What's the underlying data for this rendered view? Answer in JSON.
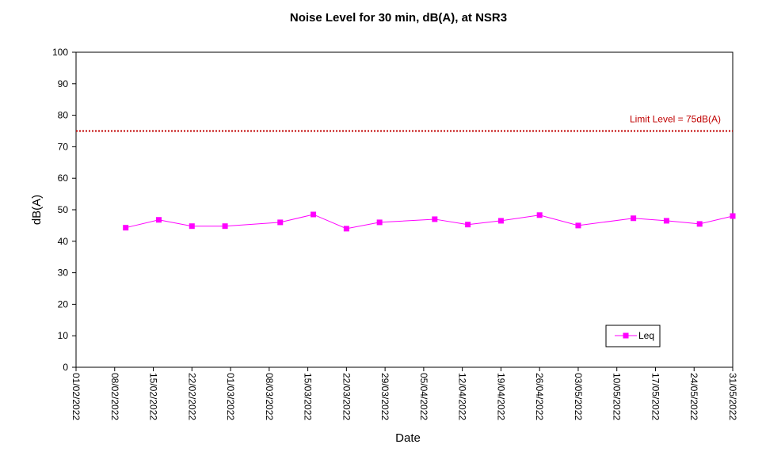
{
  "chart_data": {
    "type": "line",
    "title": "Noise Level for 30 min, dB(A), at NSR3",
    "xlabel": "Date",
    "ylabel": "dB(A)",
    "ylim": [
      0,
      100
    ],
    "yticks": [
      "0",
      "10",
      "20",
      "30",
      "40",
      "50",
      "60",
      "70",
      "80",
      "90",
      "100"
    ],
    "xlim": [
      "01/02/2022",
      "31/05/2022"
    ],
    "xticks": [
      "01/02/2022",
      "08/02/2022",
      "15/02/2022",
      "22/02/2022",
      "01/03/2022",
      "08/03/2022",
      "15/03/2022",
      "22/03/2022",
      "29/03/2022",
      "05/04/2022",
      "12/04/2022",
      "19/04/2022",
      "26/04/2022",
      "03/05/2022",
      "10/05/2022",
      "17/05/2022",
      "24/05/2022",
      "31/05/2022"
    ],
    "grid": false,
    "legend_position": "bottom-right",
    "limit_line": {
      "value": 75,
      "label": "Limit Level  = 75dB(A)",
      "color": "#c00000"
    },
    "series": [
      {
        "name": "Leq",
        "color": "#ff00ff",
        "marker": "square",
        "x": [
          "10/02/2022",
          "16/02/2022",
          "22/02/2022",
          "28/02/2022",
          "10/03/2022",
          "16/03/2022",
          "22/03/2022",
          "28/03/2022",
          "07/04/2022",
          "13/04/2022",
          "19/04/2022",
          "26/04/2022",
          "03/05/2022",
          "13/05/2022",
          "19/05/2022",
          "25/05/2022",
          "31/05/2022"
        ],
        "values": [
          44.3,
          46.8,
          44.8,
          44.8,
          46.0,
          48.5,
          44.0,
          46.0,
          47.0,
          45.3,
          46.5,
          48.3,
          45.0,
          47.3,
          46.5,
          45.5,
          48.0
        ]
      }
    ]
  }
}
